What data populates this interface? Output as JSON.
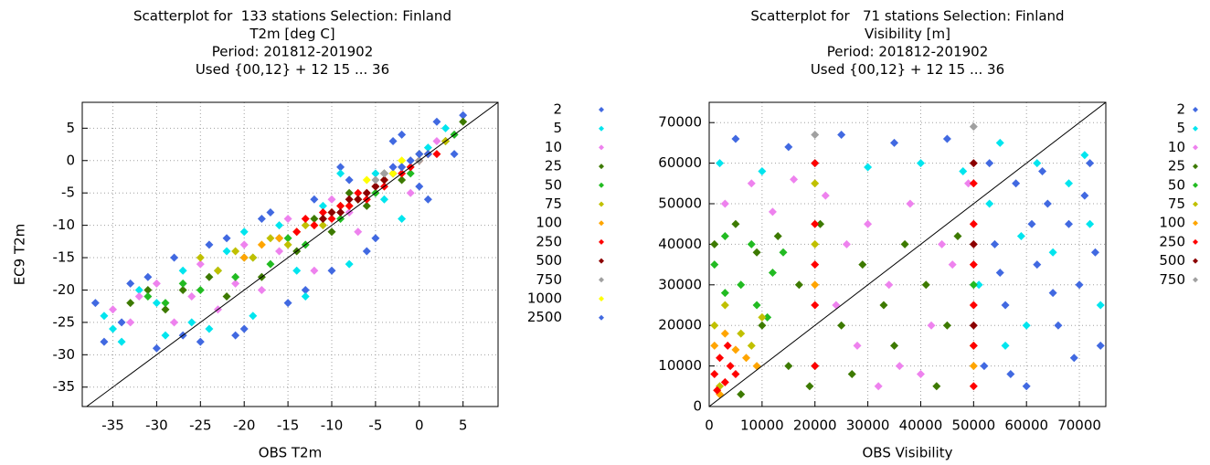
{
  "chart_data": [
    {
      "type": "scatter",
      "title": [
        "Scatterplot for  133 stations Selection: Finland",
        "T2m [deg C]",
        "Period: 201812-201902",
        "Used {00,12} + 12 15 ... 36"
      ],
      "xlabel": "OBS T2m",
      "ylabel": "EC9 T2m",
      "xlim": [
        -38.5,
        9
      ],
      "ylim": [
        -38,
        9
      ],
      "xticks": [
        -35,
        -30,
        -25,
        -20,
        -15,
        -10,
        -5,
        0,
        5
      ],
      "yticks": [
        -35,
        -30,
        -25,
        -20,
        -15,
        -10,
        -5,
        0,
        5
      ],
      "grid": true,
      "diagonal": true,
      "series": [
        {
          "name": "2",
          "color": "#4169e1",
          "x": [
            -37,
            -36,
            -33,
            -30,
            -28,
            -25,
            -22,
            -20,
            -18,
            -15,
            -12,
            -10,
            -8,
            -5,
            -3,
            0,
            2,
            4,
            -34,
            -31,
            -27,
            -24,
            -21,
            -17,
            -13,
            -9,
            -6,
            -2,
            1,
            5
          ],
          "values": [
            -22,
            -28,
            -19,
            -29,
            -15,
            -28,
            -12,
            -26,
            -9,
            -22,
            -6,
            -17,
            -3,
            -12,
            3,
            -4,
            6,
            1,
            -25,
            -18,
            -27,
            -13,
            -27,
            -8,
            -20,
            -1,
            -14,
            4,
            -6,
            7
          ]
        },
        {
          "name": "5",
          "color": "#00e5ee",
          "x": [
            -36,
            -34,
            -32,
            -29,
            -27,
            -24,
            -22,
            -19,
            -16,
            -13,
            -11,
            -8,
            -5,
            -2,
            1,
            3,
            -35,
            -30,
            -26,
            -20,
            -14,
            -9,
            -4
          ],
          "values": [
            -24,
            -28,
            -20,
            -27,
            -17,
            -26,
            -14,
            -24,
            -10,
            -21,
            -7,
            -16,
            -2,
            -9,
            2,
            5,
            -26,
            -22,
            -25,
            -11,
            -17,
            -2,
            -6
          ]
        },
        {
          "name": "10",
          "color": "#ee82ee",
          "x": [
            -35,
            -33,
            -30,
            -28,
            -25,
            -23,
            -20,
            -18,
            -15,
            -12,
            -10,
            -7,
            -4,
            -1,
            2,
            4,
            -32,
            -26,
            -21,
            -16,
            -8,
            -3
          ],
          "values": [
            -23,
            -25,
            -19,
            -25,
            -16,
            -23,
            -13,
            -20,
            -9,
            -17,
            -6,
            -11,
            -2,
            -5,
            3,
            4,
            -21,
            -21,
            -19,
            -14,
            -8,
            -1
          ]
        },
        {
          "name": "25",
          "color": "#3d7a00",
          "x": [
            -33,
            -31,
            -29,
            -27,
            -24,
            -22,
            -20,
            -18,
            -16,
            -14,
            -12,
            -10,
            -8,
            -6,
            -4,
            -2,
            0,
            3,
            5
          ],
          "values": [
            -22,
            -20,
            -23,
            -20,
            -18,
            -21,
            -15,
            -18,
            -12,
            -14,
            -9,
            -11,
            -5,
            -7,
            -2,
            -3,
            1,
            3,
            6
          ]
        },
        {
          "name": "50",
          "color": "#22bb22",
          "x": [
            -31,
            -29,
            -27,
            -25,
            -23,
            -21,
            -19,
            -17,
            -15,
            -13,
            -11,
            -9,
            -7,
            -5,
            -3,
            -1,
            1,
            4
          ],
          "values": [
            -21,
            -22,
            -19,
            -20,
            -17,
            -18,
            -15,
            -16,
            -12,
            -13,
            -9,
            -9,
            -6,
            -5,
            -2,
            -2,
            1,
            4
          ]
        },
        {
          "name": "75",
          "color": "#c0c000",
          "x": [
            -25,
            -23,
            -21,
            -19,
            -17,
            -15,
            -13,
            -11,
            -9,
            -7,
            -5,
            -3,
            0,
            3
          ],
          "values": [
            -15,
            -17,
            -14,
            -15,
            -12,
            -13,
            -10,
            -10,
            -7,
            -6,
            -4,
            -2,
            0,
            3
          ]
        },
        {
          "name": "100",
          "color": "#ffa500",
          "x": [
            -20,
            -18,
            -16,
            -14,
            -12,
            -10,
            -8,
            -6,
            -4,
            -2,
            1
          ],
          "values": [
            -15,
            -13,
            -12,
            -11,
            -10,
            -8,
            -7,
            -5,
            -3,
            -1,
            1
          ]
        },
        {
          "name": "250",
          "color": "#ff0000",
          "x": [
            -14,
            -13,
            -12,
            -11,
            -10,
            -9,
            -8,
            -7,
            -6,
            -5,
            -4,
            -3,
            -2,
            -1,
            0,
            1,
            2
          ],
          "values": [
            -11,
            -9,
            -10,
            -8,
            -9,
            -7,
            -7,
            -5,
            -6,
            -4,
            -4,
            -2,
            -2,
            -1,
            0,
            1,
            1
          ]
        },
        {
          "name": "500",
          "color": "#8b0000",
          "x": [
            -11,
            -10,
            -9,
            -8,
            -7,
            -6,
            -5,
            -4
          ],
          "values": [
            -9,
            -8,
            -8,
            -6,
            -6,
            -5,
            -4,
            -3
          ]
        },
        {
          "name": "750",
          "color": "#a0a0a0",
          "x": [
            -5,
            -4,
            -3,
            -2,
            -1,
            0
          ],
          "values": [
            -3,
            -2,
            -2,
            -1,
            0,
            0
          ]
        },
        {
          "name": "1000",
          "color": "#ffff00",
          "x": [
            -6,
            -3,
            -2
          ],
          "values": [
            -3,
            -2,
            0
          ]
        },
        {
          "name": "2500",
          "color": "#4169e1",
          "x": [
            -3,
            -2,
            -1,
            0,
            1
          ],
          "values": [
            -1,
            -1,
            0,
            1,
            1
          ]
        }
      ]
    },
    {
      "type": "scatter",
      "title": [
        "Scatterplot for   71 stations Selection: Finland",
        "Visibility [m]",
        "Period: 201812-201902",
        "Used {00,12} + 12 15 ... 36"
      ],
      "xlabel": "OBS Visibility",
      "xlim": [
        0,
        75000
      ],
      "ylim": [
        0,
        75000
      ],
      "xticks": [
        0,
        10000,
        20000,
        30000,
        40000,
        50000,
        60000,
        70000
      ],
      "yticks": [
        0,
        10000,
        20000,
        30000,
        40000,
        50000,
        60000,
        70000
      ],
      "grid": true,
      "diagonal": true,
      "series": [
        {
          "name": "2",
          "color": "#4169e1",
          "x": [
            52000,
            54000,
            56000,
            58000,
            60000,
            62000,
            64000,
            66000,
            68000,
            70000,
            72000,
            74000,
            53000,
            57000,
            61000,
            65000,
            69000,
            73000,
            55000,
            63000,
            71000,
            5000,
            15000,
            25000,
            35000,
            45000
          ],
          "values": [
            10000,
            40000,
            25000,
            55000,
            5000,
            35000,
            50000,
            20000,
            45000,
            30000,
            60000,
            15000,
            60000,
            8000,
            45000,
            28000,
            12000,
            38000,
            33000,
            58000,
            52000,
            66000,
            64000,
            67000,
            65000,
            66000
          ]
        },
        {
          "name": "5",
          "color": "#00e5ee",
          "x": [
            51000,
            53000,
            56000,
            59000,
            62000,
            65000,
            68000,
            71000,
            74000,
            2000,
            10000,
            20000,
            30000,
            40000,
            48000,
            60000,
            72000,
            55000
          ],
          "values": [
            30000,
            50000,
            15000,
            42000,
            60000,
            38000,
            55000,
            62000,
            25000,
            60000,
            58000,
            60000,
            59000,
            60000,
            58000,
            20000,
            45000,
            65000
          ]
        },
        {
          "name": "10",
          "color": "#ee82ee",
          "x": [
            3000,
            8000,
            12000,
            16000,
            22000,
            26000,
            30000,
            34000,
            38000,
            42000,
            46000,
            49000,
            28000,
            36000,
            44000,
            24000,
            32000,
            40000
          ],
          "values": [
            50000,
            55000,
            48000,
            56000,
            52000,
            40000,
            45000,
            30000,
            50000,
            20000,
            35000,
            55000,
            15000,
            10000,
            40000,
            25000,
            5000,
            8000
          ]
        },
        {
          "name": "25",
          "color": "#3d7a00",
          "x": [
            1000,
            5000,
            9000,
            13000,
            17000,
            21000,
            25000,
            29000,
            33000,
            37000,
            41000,
            45000,
            15000,
            10000,
            27000,
            35000,
            43000,
            47000,
            6000,
            19000
          ],
          "values": [
            40000,
            45000,
            38000,
            42000,
            30000,
            45000,
            20000,
            35000,
            25000,
            40000,
            30000,
            20000,
            10000,
            20000,
            8000,
            15000,
            5000,
            42000,
            3000,
            5000
          ]
        },
        {
          "name": "50",
          "color": "#22bb22",
          "x": [
            1000,
            3000,
            6000,
            9000,
            12000,
            3000,
            8000,
            14000,
            11000,
            50000,
            20000
          ],
          "values": [
            35000,
            28000,
            30000,
            25000,
            33000,
            42000,
            40000,
            38000,
            22000,
            30000,
            10000
          ]
        },
        {
          "name": "75",
          "color": "#c0c000",
          "x": [
            1000,
            3000,
            6000,
            8000,
            10000,
            2000,
            20000,
            20000,
            50000
          ],
          "values": [
            20000,
            25000,
            18000,
            15000,
            22000,
            5000,
            40000,
            55000,
            15000
          ]
        },
        {
          "name": "100",
          "color": "#ffa500",
          "x": [
            1000,
            3000,
            5000,
            7000,
            9000,
            2000,
            20000,
            50000
          ],
          "values": [
            15000,
            18000,
            14000,
            12000,
            10000,
            3000,
            30000,
            10000
          ]
        },
        {
          "name": "250",
          "color": "#ff0000",
          "x": [
            1000,
            2000,
            3000,
            4000,
            5000,
            1500,
            3500,
            20000,
            20000,
            20000,
            20000,
            20000,
            50000,
            50000,
            50000,
            50000,
            50000,
            50000
          ],
          "values": [
            8000,
            12000,
            6000,
            10000,
            8000,
            4000,
            15000,
            10000,
            25000,
            35000,
            45000,
            60000,
            5000,
            15000,
            25000,
            35000,
            45000,
            55000
          ]
        },
        {
          "name": "500",
          "color": "#8b0000",
          "x": [
            50000,
            50000,
            50000
          ],
          "values": [
            20000,
            40000,
            60000
          ]
        },
        {
          "name": "750",
          "color": "#a0a0a0",
          "x": [
            20000,
            50000
          ],
          "values": [
            67000,
            69000
          ]
        }
      ]
    }
  ]
}
